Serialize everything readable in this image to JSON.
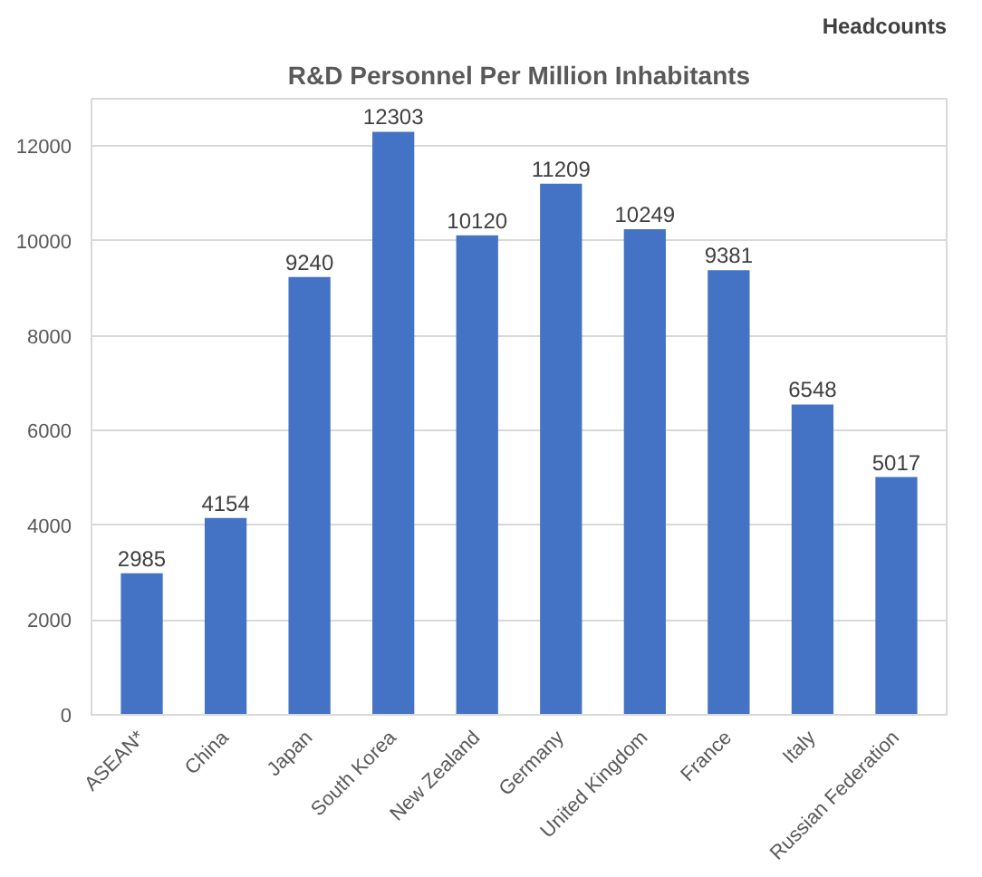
{
  "chart_data": {
    "type": "bar",
    "title": "R&D Personnel Per Million Inhabitants",
    "annotations": [
      "Headcounts"
    ],
    "categories": [
      "ASEAN*",
      "China",
      "Japan",
      "South Korea",
      "New Zealand",
      "Germany",
      "United Kingdom",
      "France",
      "Italy",
      "Russian Federation"
    ],
    "values": [
      2985,
      4154,
      9240,
      12303,
      10120,
      11209,
      10249,
      9381,
      6548,
      5017
    ],
    "color": "#4472c4",
    "ylim": [
      0,
      13000
    ],
    "yticks": [
      0,
      2000,
      4000,
      6000,
      8000,
      10000,
      12000
    ],
    "grid": "y",
    "data_labels": true
  }
}
